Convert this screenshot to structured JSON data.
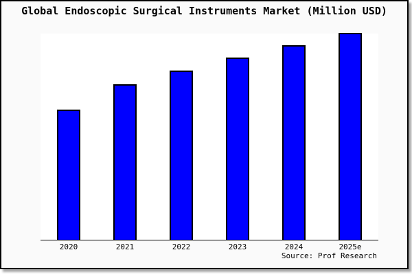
{
  "chart_data": {
    "type": "bar",
    "title": "Global Endoscopic Surgical Instruments Market (Million USD)",
    "categories": [
      "2020",
      "2021",
      "2022",
      "2023",
      "2024",
      "2025e"
    ],
    "values": [
      62.6,
      75.0,
      81.4,
      87.7,
      93.7,
      100.0
    ],
    "values_note": "Y axis is unlabeled in the image; values are bar heights as percent of the tallest (2025e) bar",
    "xlabel": "",
    "ylabel": "",
    "ylim": [
      0,
      100.5
    ],
    "grid": false,
    "legend": false,
    "bar_color": "#0000ff",
    "bar_border_color": "#000000"
  },
  "source_label": "Source: Prof Research",
  "colors": {
    "figure_bg": "#fafafa",
    "plot_bg": "#ffffff",
    "frame_border": "#000000",
    "axis_line": "#000000",
    "text": "#000000"
  }
}
